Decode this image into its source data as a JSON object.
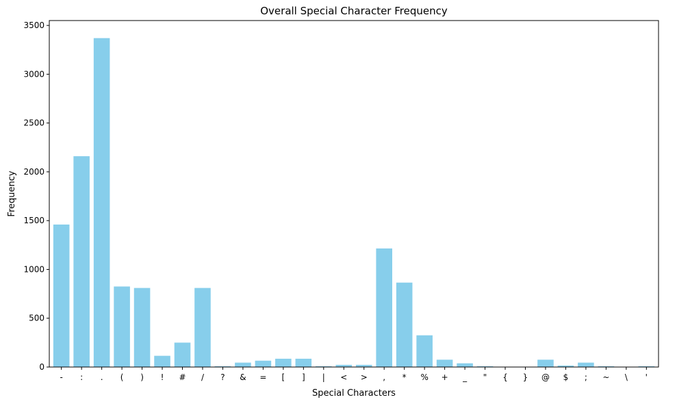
{
  "chart_data": {
    "type": "bar",
    "title": "Overall Special Character Frequency",
    "xlabel": "Special Characters",
    "ylabel": "Frequency",
    "categories": [
      "-",
      ":",
      ".",
      "(",
      ")",
      "!",
      "#",
      "/",
      "?",
      "&",
      "=",
      "[",
      "]",
      "|",
      "<",
      ">",
      ",",
      "*",
      "%",
      "+",
      "_",
      "\"",
      "{",
      "}",
      "@",
      "$",
      ";",
      "~",
      "\\",
      "'"
    ],
    "values": [
      1460,
      2160,
      3370,
      825,
      810,
      115,
      250,
      810,
      8,
      45,
      65,
      85,
      85,
      8,
      22,
      22,
      1215,
      865,
      325,
      75,
      38,
      8,
      3,
      3,
      75,
      15,
      45,
      8,
      3,
      8
    ],
    "ylim": [
      0,
      3550
    ],
    "yticks": [
      0,
      500,
      1000,
      1500,
      2000,
      2500,
      3000,
      3500
    ],
    "bar_color": "#87ceeb",
    "grid": false,
    "legend": "none"
  }
}
